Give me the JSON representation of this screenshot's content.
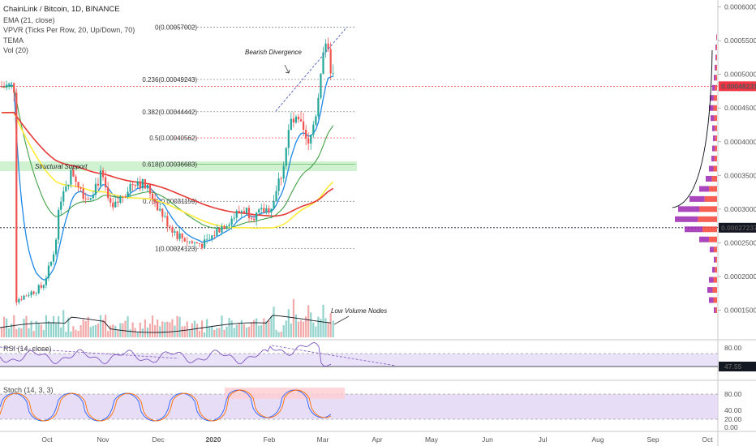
{
  "legend": {
    "title": "ChainLink / Bitcoin, 1D, BINANCE",
    "ema": "EMA (21, close)",
    "vpvr": "VPVR (Ticks Per Row, 20, Up/Down, 70)",
    "tema": "TEMA",
    "vol": "Vol (20)"
  },
  "panes": {
    "rsi_label": "RSI (14, close)",
    "stoch_label": "Stoch (14, 3, 3)"
  },
  "price_axis": {
    "ticks": [
      "0.00060000",
      "0.00055000",
      "0.00050000",
      "0.00045000",
      "0.00040000",
      "0.00035000",
      "0.00030000",
      "0.00025000",
      "0.00020000",
      "0.00015000"
    ],
    "current_price": "0.00048231",
    "marked_price": "0.00027237",
    "current_color": "#f23645",
    "marked_color": "#131722"
  },
  "rsi_axis": {
    "ticks": [
      "80.00"
    ],
    "current": "47.55"
  },
  "stoch_axis": {
    "ticks": [
      "80.00",
      "40.00",
      "20.00",
      "0.00"
    ]
  },
  "time_axis": [
    "Oct",
    "Nov",
    "Dec",
    "2020",
    "Feb",
    "Mar",
    "Apr",
    "May",
    "Jun",
    "Jul",
    "Aug",
    "Sep",
    "Oct"
  ],
  "fib_levels": [
    {
      "label": "0(0.00057002)",
      "value": 0.00057002,
      "color": "#787b86"
    },
    {
      "label": "0.236(0.00049243)",
      "value": 0.00049243,
      "color": "#787b86"
    },
    {
      "label": "0.382(0.00044442)",
      "value": 0.00044442,
      "color": "#787b86"
    },
    {
      "label": "0.5(0.00040562)",
      "value": 0.00040562,
      "color": "#f23645"
    },
    {
      "label": "0.618(0.00036683)",
      "value": 0.00036683,
      "color": "#4caf50"
    },
    {
      "label": "0.786(0.00031159)",
      "value": 0.00031159,
      "color": "#787b86"
    },
    {
      "label": "1(0.00024123)",
      "value": 0.00024123,
      "color": "#787b86"
    }
  ],
  "annotations": {
    "bearish_divergence": "Bearish Divergence",
    "structural_support": "Structural Support",
    "low_volume_nodes": "Low Volume Nodes"
  },
  "colors": {
    "up": "#26a69a",
    "down": "#ef5350",
    "ema": "#1e88e5",
    "tema_green": "#43a047",
    "yellow": "#ffeb3b",
    "red": "#e53935",
    "rsi": "#7e57c2",
    "support_zone": "#c8f0c8"
  },
  "chart_data": {
    "type": "line",
    "x": [
      "2019-09-10",
      "2019-09-25",
      "2019-10-01",
      "2019-10-06",
      "2019-10-12",
      "2019-10-20",
      "2019-10-28",
      "2019-11-03",
      "2019-11-10",
      "2019-11-17",
      "2019-11-25",
      "2019-12-03",
      "2019-12-10",
      "2019-12-18",
      "2019-12-26",
      "2020-01-02",
      "2020-01-09",
      "2020-01-16",
      "2020-01-24",
      "2020-02-01",
      "2020-02-07",
      "2020-02-12",
      "2020-02-17",
      "2020-02-22",
      "2020-02-27",
      "2020-03-01",
      "2020-03-05",
      "2020-03-08"
    ],
    "series": [
      {
        "values": [
          0.000165,
          0.000185,
          0.00023,
          0.00033,
          0.000355,
          0.000315,
          0.00035,
          0.000295,
          0.000325,
          0.000345,
          0.000325,
          0.000285,
          0.000262,
          0.00025,
          0.000248,
          0.00027,
          0.000285,
          0.0003,
          0.00029,
          0.000305,
          0.000355,
          0.00043,
          0.000425,
          0.00039,
          0.000455,
          0.00054,
          0.00052,
          0.000482
        ]
      }
    ],
    "ylim": [
      0.000125,
      0.00061
    ],
    "xlim": [
      "2019-09-01",
      "2020-10-10"
    ]
  }
}
